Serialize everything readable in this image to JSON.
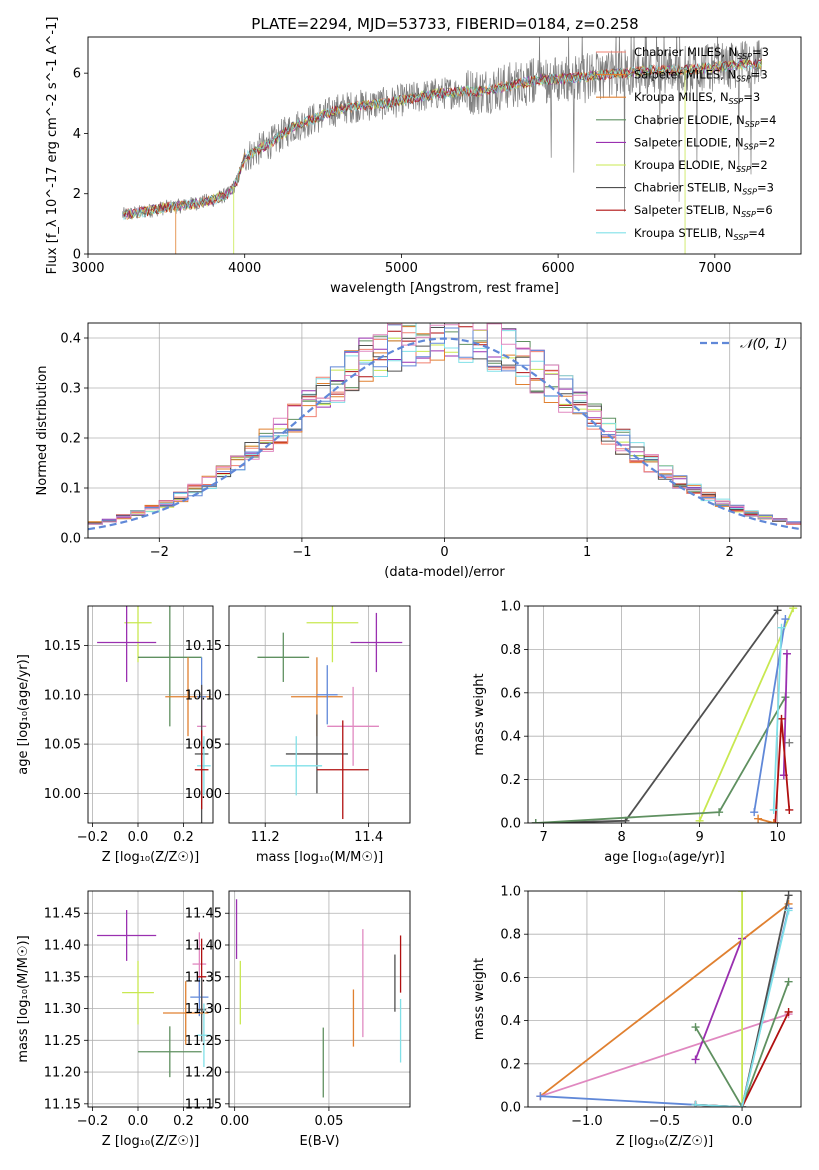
{
  "figure_title": "PLATE=2294, MJD=53733, FIBERID=0184, z=0.258",
  "colors": {
    "gray": "#808080",
    "salmon": "#f08070",
    "orange": "#e08030",
    "green": "#5f9060",
    "purple": "#9a30b0",
    "yellowgreen": "#c8e850",
    "darkgray": "#505050",
    "darkred": "#b01010",
    "cyan": "#80e0e8",
    "blue": "#6088d8",
    "pink": "#e088c0",
    "grid": "#b0b0b0"
  },
  "chart_data": [
    {
      "id": "spectrum",
      "type": "line",
      "title": "PLATE=2294, MJD=53733, FIBERID=0184, z=0.258",
      "xlabel": "wavelength [Angstrom, rest frame]",
      "ylabel": "Flux [f_λ 10^-17 erg cm^-2 s^-1 A^-1]",
      "xlim": [
        3000,
        7550
      ],
      "ylim": [
        0,
        7.2
      ],
      "xticks": [
        3000,
        4000,
        5000,
        6000,
        7000
      ],
      "yticks": [
        0,
        2,
        4,
        6
      ],
      "grid": false,
      "legend_position": "top-right",
      "legend": [
        {
          "label": "Chabrier MILES, N",
          "sub": "SSP",
          "val": "=3",
          "color": "salmon"
        },
        {
          "label": "Salpeter MILES, N",
          "sub": "SSP",
          "val": "=3",
          "color": "orange"
        },
        {
          "label": "Kroupa MILES, N",
          "sub": "SSP",
          "val": "=3",
          "color": "orange"
        },
        {
          "label": "Chabrier ELODIE, N",
          "sub": "SSP",
          "val": "=4",
          "color": "green"
        },
        {
          "label": "Salpeter ELODIE, N",
          "sub": "SSP",
          "val": "=2",
          "color": "purple"
        },
        {
          "label": "Kroupa ELODIE, N",
          "sub": "SSP",
          "val": "=2",
          "color": "yellowgreen"
        },
        {
          "label": "Chabrier STELIB, N",
          "sub": "SSP",
          "val": "=3",
          "color": "darkgray"
        },
        {
          "label": "Salpeter STELIB, N",
          "sub": "SSP",
          "val": "=6",
          "color": "darkred"
        },
        {
          "label": "Kroupa STELIB, N",
          "sub": "SSP",
          "val": "=4",
          "color": "cyan"
        }
      ],
      "continuum": {
        "x": [
          3220,
          3300,
          3400,
          3500,
          3600,
          3700,
          3800,
          3900,
          3950,
          4000,
          4100,
          4200,
          4300,
          4400,
          4500,
          4600,
          4700,
          4800,
          4900,
          5000,
          5100,
          5200,
          5300,
          5400,
          5500,
          5600,
          5700,
          5800,
          5900,
          6000,
          6200,
          6400,
          6600,
          6800,
          7000,
          7200,
          7300
        ],
        "y": [
          1.3,
          1.35,
          1.45,
          1.55,
          1.6,
          1.7,
          1.8,
          2.0,
          2.4,
          3.2,
          3.5,
          3.8,
          4.2,
          4.4,
          4.6,
          4.8,
          4.9,
          4.95,
          5.0,
          5.1,
          5.2,
          5.3,
          5.35,
          5.4,
          5.4,
          5.5,
          5.6,
          5.7,
          5.8,
          5.8,
          5.9,
          6.0,
          6.1,
          6.1,
          6.2,
          6.3,
          6.3
        ]
      }
    },
    {
      "id": "residuals",
      "type": "histogram",
      "xlabel": "(data-model)/error",
      "ylabel": "Normed distribution",
      "xlim": [
        -2.5,
        2.5
      ],
      "ylim": [
        0,
        0.43
      ],
      "xticks": [
        -2,
        -1,
        0,
        1,
        2
      ],
      "yticks": [
        0.0,
        0.1,
        0.2,
        0.3,
        0.4
      ],
      "grid": true,
      "legend_position": "top-right",
      "legend": [
        {
          "label": "𝒩(0, 1)",
          "color": "blue",
          "style": "dashed"
        }
      ],
      "gaussian": {
        "mean": 0,
        "sigma": 1
      }
    },
    {
      "id": "age_vs_Z",
      "type": "scatter",
      "xlabel": "Z [log₁₀(Z/Z☉)]",
      "ylabel": "age  [log₁₀(age/yr)]",
      "xlim": [
        -0.22,
        0.33
      ],
      "ylim": [
        9.97,
        10.19
      ],
      "xticks": [
        -0.2,
        0.0,
        0.2
      ],
      "yticks": [
        10.0,
        10.05,
        10.1,
        10.15
      ],
      "grid": true,
      "points": [
        {
          "x": 0.0,
          "y": 10.173,
          "xerr": 0.06,
          "yerr": 0.04,
          "color": "yellowgreen"
        },
        {
          "x": -0.05,
          "y": 10.153,
          "xerr": 0.13,
          "yerr": 0.04,
          "color": "purple"
        },
        {
          "x": 0.14,
          "y": 10.138,
          "xerr": 0.14,
          "yerr": 0.07,
          "color": "green"
        },
        {
          "x": 0.22,
          "y": 10.098,
          "xerr": 0.1,
          "yerr": 0.04,
          "color": "orange"
        },
        {
          "x": 0.28,
          "y": 10.098,
          "xerr": 0.02,
          "yerr": 0.04,
          "color": "blue"
        },
        {
          "x": 0.28,
          "y": 10.068,
          "xerr": 0.02,
          "yerr": 0.04,
          "color": "pink"
        },
        {
          "x": 0.28,
          "y": 10.04,
          "xerr": 0.03,
          "yerr": 0.07,
          "color": "darkgray"
        },
        {
          "x": 0.29,
          "y": 10.028,
          "xerr": 0.03,
          "yerr": 0.03,
          "color": "cyan"
        },
        {
          "x": 0.28,
          "y": 10.024,
          "xerr": 0.03,
          "yerr": 0.04,
          "color": "darkred"
        }
      ]
    },
    {
      "id": "age_vs_mass",
      "type": "scatter",
      "xlabel": "mass [log₁₀(M/M☉)]",
      "ylabel": "",
      "xlim": [
        11.13,
        11.48
      ],
      "ylim": [
        9.97,
        10.19
      ],
      "xticks": [
        11.2,
        11.4
      ],
      "yticks": [
        10.0,
        10.05,
        10.1,
        10.15
      ],
      "grid": true,
      "points": [
        {
          "x": 11.33,
          "y": 10.173,
          "xerr": 0.05,
          "yerr": 0.04,
          "color": "yellowgreen"
        },
        {
          "x": 11.415,
          "y": 10.153,
          "xerr": 0.05,
          "yerr": 0.03,
          "color": "purple"
        },
        {
          "x": 11.235,
          "y": 10.138,
          "xerr": 0.05,
          "yerr": 0.025,
          "color": "green"
        },
        {
          "x": 11.3,
          "y": 10.098,
          "xerr": 0.05,
          "yerr": 0.04,
          "color": "orange"
        },
        {
          "x": 11.32,
          "y": 10.1,
          "xerr": 0.02,
          "yerr": 0.03,
          "color": "blue"
        },
        {
          "x": 11.37,
          "y": 10.068,
          "xerr": 0.05,
          "yerr": 0.04,
          "color": "pink"
        },
        {
          "x": 11.3,
          "y": 10.04,
          "xerr": 0.06,
          "yerr": 0.04,
          "color": "darkgray"
        },
        {
          "x": 11.26,
          "y": 10.028,
          "xerr": 0.05,
          "yerr": 0.03,
          "color": "cyan"
        },
        {
          "x": 11.35,
          "y": 10.024,
          "xerr": 0.05,
          "yerr": 0.05,
          "color": "darkred"
        }
      ]
    },
    {
      "id": "mass_weight_vs_age",
      "type": "line",
      "xlabel": "age  [log₁₀(age/yr)]",
      "ylabel": "mass weight",
      "xlim": [
        6.8,
        10.3
      ],
      "ylim": [
        0,
        1.0
      ],
      "xticks": [
        7,
        8,
        9,
        10
      ],
      "yticks": [
        0.0,
        0.2,
        0.4,
        0.6,
        0.8,
        1.0
      ],
      "grid": true,
      "series": [
        {
          "color": "darkgray",
          "x": [
            6.9,
            8.05,
            10.0
          ],
          "y": [
            0.0,
            0.01,
            0.98
          ]
        },
        {
          "color": "yellowgreen",
          "x": [
            9.0,
            10.2
          ],
          "y": [
            0.01,
            0.99
          ]
        },
        {
          "color": "green",
          "x": [
            6.9,
            9.25,
            10.1
          ],
          "y": [
            0.0,
            0.05,
            0.58
          ]
        },
        {
          "color": "blue",
          "x": [
            9.7,
            10.1
          ],
          "y": [
            0.05,
            0.94
          ]
        },
        {
          "color": "purple",
          "x": [
            10.08,
            10.12
          ],
          "y": [
            0.22,
            0.78
          ]
        },
        {
          "color": "darkred",
          "x": [
            9.97,
            10.05,
            10.15
          ],
          "y": [
            0.0,
            0.48,
            0.06
          ]
        },
        {
          "color": "cyan",
          "x": [
            9.95,
            10.05
          ],
          "y": [
            0.06,
            0.9
          ]
        },
        {
          "color": "orange",
          "x": [
            9.75,
            9.95
          ],
          "y": [
            0.02,
            0.0
          ]
        },
        {
          "color": "gray",
          "x": [
            10.15
          ],
          "y": [
            0.37
          ]
        }
      ]
    },
    {
      "id": "mass_vs_Z",
      "type": "scatter",
      "xlabel": "Z [log₁₀(Z/Z☉)]",
      "ylabel": "mass [log₁₀(M/M☉)]",
      "xlim": [
        -0.22,
        0.33
      ],
      "ylim": [
        11.145,
        11.485
      ],
      "xticks": [
        -0.2,
        0.0,
        0.2
      ],
      "yticks": [
        11.15,
        11.2,
        11.25,
        11.3,
        11.35,
        11.4,
        11.45
      ],
      "grid": true,
      "points": [
        {
          "x": -0.05,
          "y": 11.415,
          "xerr": 0.13,
          "yerr": 0.04,
          "color": "purple"
        },
        {
          "x": 0.27,
          "y": 11.37,
          "xerr": 0.03,
          "yerr": 0.05,
          "color": "pink"
        },
        {
          "x": 0.28,
          "y": 11.35,
          "xerr": 0.02,
          "yerr": 0.06,
          "color": "darkred"
        },
        {
          "x": 0.0,
          "y": 11.325,
          "xerr": 0.07,
          "yerr": 0.05,
          "color": "yellowgreen"
        },
        {
          "x": 0.27,
          "y": 11.318,
          "xerr": 0.04,
          "yerr": 0.03,
          "color": "blue"
        },
        {
          "x": 0.28,
          "y": 11.298,
          "xerr": 0.02,
          "yerr": 0.05,
          "color": "darkgray"
        },
        {
          "x": 0.21,
          "y": 11.293,
          "xerr": 0.1,
          "yerr": 0.05,
          "color": "orange"
        },
        {
          "x": 0.29,
          "y": 11.258,
          "xerr": 0.03,
          "yerr": 0.05,
          "color": "cyan"
        },
        {
          "x": 0.14,
          "y": 11.232,
          "xerr": 0.14,
          "yerr": 0.04,
          "color": "green"
        }
      ]
    },
    {
      "id": "mass_vs_ebv",
      "type": "scatter",
      "xlabel": "E(B-V)",
      "ylabel": "",
      "xlim": [
        -0.003,
        0.093
      ],
      "ylim": [
        11.145,
        11.485
      ],
      "xticks": [
        0.0,
        0.05
      ],
      "yticks": [
        11.15,
        11.2,
        11.25,
        11.3,
        11.35,
        11.4,
        11.45
      ],
      "grid": true,
      "points": [
        {
          "x": 0.001,
          "y": 11.425,
          "xerr": 0.0,
          "yerr": 0.047,
          "color": "purple"
        },
        {
          "x": 0.003,
          "y": 11.325,
          "xerr": 0.0,
          "yerr": 0.05,
          "color": "yellowgreen"
        },
        {
          "x": 0.047,
          "y": 11.215,
          "xerr": 0.0,
          "yerr": 0.055,
          "color": "green"
        },
        {
          "x": 0.063,
          "y": 11.285,
          "xerr": 0.0,
          "yerr": 0.045,
          "color": "orange"
        },
        {
          "x": 0.068,
          "y": 11.34,
          "xerr": 0.0,
          "yerr": 0.085,
          "color": "pink"
        },
        {
          "x": 0.085,
          "y": 11.34,
          "xerr": 0.0,
          "yerr": 0.045,
          "color": "darkgray"
        },
        {
          "x": 0.088,
          "y": 11.37,
          "xerr": 0.0,
          "yerr": 0.045,
          "color": "darkred"
        },
        {
          "x": 0.088,
          "y": 11.265,
          "xerr": 0.0,
          "yerr": 0.05,
          "color": "cyan"
        }
      ]
    },
    {
      "id": "mass_weight_vs_Z",
      "type": "line",
      "xlabel": "Z [log₁₀(Z/Z☉)]",
      "ylabel": "mass weight",
      "xlim": [
        -1.38,
        0.38
      ],
      "ylim": [
        0,
        1.0
      ],
      "xticks": [
        -1.0,
        -0.5,
        0.0
      ],
      "yticks": [
        0.0,
        0.2,
        0.4,
        0.6,
        0.8,
        1.0
      ],
      "grid": true,
      "series": [
        {
          "color": "orange",
          "x": [
            -1.3,
            0.3
          ],
          "y": [
            0.05,
            0.94
          ]
        },
        {
          "color": "pink",
          "x": [
            -1.3,
            0.3
          ],
          "y": [
            0.05,
            0.43
          ]
        },
        {
          "color": "blue",
          "x": [
            -1.3,
            -0.3,
            0.0,
            0.3
          ],
          "y": [
            0.05,
            0.01,
            0.0,
            0.92
          ]
        },
        {
          "color": "purple",
          "x": [
            -0.3,
            0.0
          ],
          "y": [
            0.22,
            0.78
          ]
        },
        {
          "color": "yellowgreen",
          "x": [
            0.0,
            0.0
          ],
          "y": [
            0.0,
            1.0
          ]
        },
        {
          "color": "green",
          "x": [
            -0.3,
            0.0,
            0.3
          ],
          "y": [
            0.37,
            0.0,
            0.58
          ]
        },
        {
          "color": "darkgray",
          "x": [
            -0.3,
            0.0,
            0.3
          ],
          "y": [
            0.01,
            0.0,
            0.98
          ]
        },
        {
          "color": "darkred",
          "x": [
            -0.3,
            0.0,
            0.3
          ],
          "y": [
            0.01,
            0.0,
            0.44
          ]
        },
        {
          "color": "cyan",
          "x": [
            -0.3,
            0.0,
            0.3
          ],
          "y": [
            0.01,
            0.0,
            0.91
          ]
        }
      ]
    }
  ]
}
